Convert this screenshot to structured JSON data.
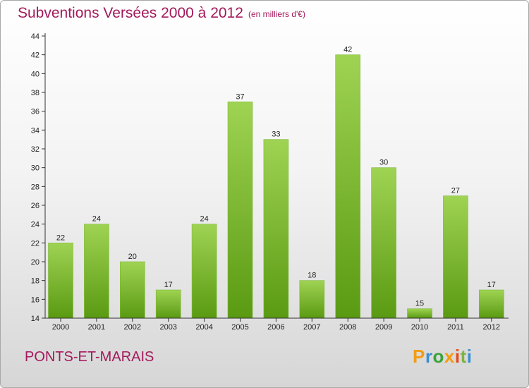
{
  "header": {
    "title": "Subventions Versées 2000 à 2012",
    "subtitle": "(en milliers d'€)"
  },
  "footer": {
    "commune": "PONTS-ET-MARAIS",
    "logo_text": "Proxiti",
    "logo_colors": [
      "#f39c12",
      "#3a8fd0",
      "#3aa33a",
      "#f39c12",
      "#e64a19",
      "#7cb342",
      "#3a8fd0"
    ]
  },
  "colors": {
    "title": "#a3195b",
    "bar_top": "#9fd353",
    "bar_bottom": "#5a9a12",
    "axis": "#333333"
  },
  "chart_data": {
    "type": "bar",
    "title": "Subventions Versées 2000 à 2012",
    "subtitle": "(en milliers d'€)",
    "categories": [
      "2000",
      "2001",
      "2002",
      "2003",
      "2004",
      "2005",
      "2006",
      "2007",
      "2008",
      "2009",
      "2010",
      "2011",
      "2012"
    ],
    "values": [
      22,
      24,
      20,
      17,
      24,
      37,
      33,
      18,
      42,
      30,
      15,
      27,
      17
    ],
    "ylim": [
      14,
      44
    ],
    "yticks": [
      14,
      16,
      18,
      20,
      22,
      24,
      26,
      28,
      30,
      32,
      34,
      36,
      38,
      40,
      42,
      44
    ],
    "grid": false,
    "data_labels": true
  }
}
